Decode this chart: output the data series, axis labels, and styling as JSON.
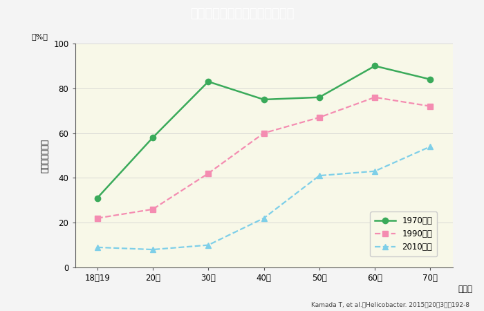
{
  "title": "わが国におけるピロリ菌感染率",
  "title_bg_color": "#2d7d32",
  "title_text_color": "#ffffff",
  "plot_bg_color": "#f8f8e8",
  "fig_bg_color": "#f4f4f4",
  "ylabel_unit": "（%）",
  "ylabel": "ピロリ菌感染率",
  "xlabel": "（歳）",
  "x_labels": [
    "18〜19",
    "20〜",
    "30〜",
    "40〜",
    "50〜",
    "60〜",
    "70〜"
  ],
  "ylim": [
    0,
    100
  ],
  "yticks": [
    0,
    20,
    40,
    60,
    80,
    100
  ],
  "citation": "Kamada T, et al.：Helicobacter. 2015：20（3）：192-8",
  "series": [
    {
      "label": "1970年代",
      "values": [
        31,
        58,
        83,
        75,
        76,
        90,
        84
      ],
      "color": "#3aaa5a",
      "linestyle": "-",
      "marker": "o",
      "markersize": 6,
      "linewidth": 1.8
    },
    {
      "label": "1990年代",
      "values": [
        22,
        26,
        42,
        60,
        67,
        76,
        72
      ],
      "color": "#f48cb1",
      "linestyle": "--",
      "marker": "s",
      "markersize": 6,
      "linewidth": 1.6
    },
    {
      "label": "2010年代",
      "values": [
        9,
        8,
        10,
        22,
        41,
        43,
        54
      ],
      "color": "#7ecfe8",
      "linestyle": "--",
      "marker": "^",
      "markersize": 6,
      "linewidth": 1.6
    }
  ]
}
